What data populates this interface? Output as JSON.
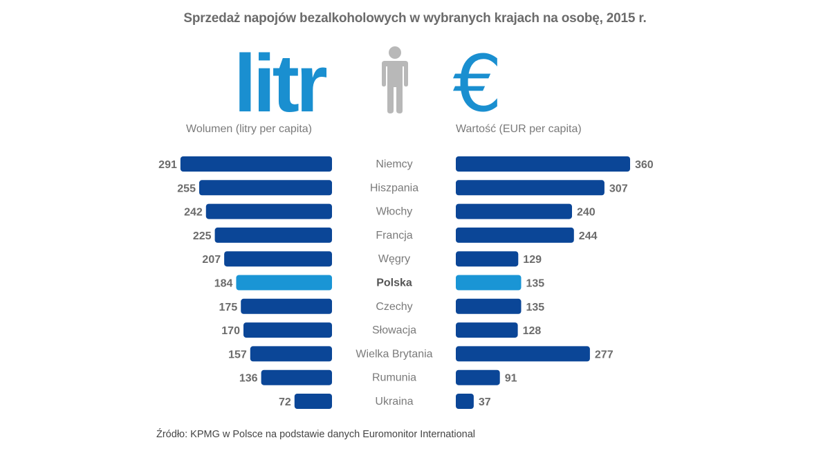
{
  "chart_data": {
    "type": "bar",
    "title": "Sprzedaż napojów bezalkoholowych w wybranych krajach na osobę, 2015 r.",
    "categories": [
      "Niemcy",
      "Hiszpania",
      "Włochy",
      "Francja",
      "Węgry",
      "Polska",
      "Czechy",
      "Słowacja",
      "Wielka Brytania",
      "Rumunia",
      "Ukraina"
    ],
    "highlight_category": "Polska",
    "series": [
      {
        "name": "Wolumen (litry per capita)",
        "header": "litr",
        "direction": "left",
        "values": [
          291,
          255,
          242,
          225,
          207,
          184,
          175,
          170,
          157,
          136,
          72
        ]
      },
      {
        "name": "Wartość (EUR per capita)",
        "header": "€",
        "direction": "right",
        "values": [
          360,
          307,
          240,
          244,
          129,
          135,
          135,
          128,
          277,
          91,
          37
        ]
      }
    ],
    "xlabel": "",
    "ylabel": "",
    "grid": false,
    "legend": "none"
  },
  "colors": {
    "bar": "#0b4697",
    "highlight": "#1a95d5",
    "icon": "#1a8fd0",
    "person": "#b8b8b8",
    "label": "#6b6b6b",
    "value": "#6b6b6b"
  },
  "headers": {
    "left_symbol": "litr",
    "right_symbol": "€",
    "left_subtitle": "Wolumen (litry per capita)",
    "right_subtitle": "Wartość (EUR per capita)"
  },
  "source": "Źródło: KPMG w Polsce na podstawie danych Euromonitor International"
}
